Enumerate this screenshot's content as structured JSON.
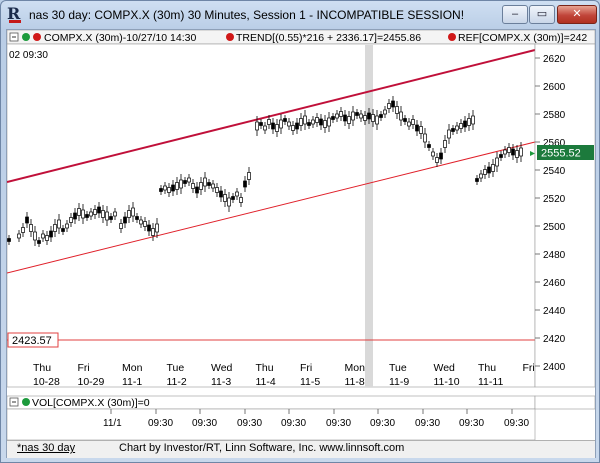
{
  "window": {
    "title": "nas 30 day:  COMPX.X (30m) 30 Minutes, Session 1 - INCOMPATIBLE SESSION!",
    "min_glyph": "–",
    "max_glyph": "▭",
    "close_glyph": "✕"
  },
  "legend": {
    "series_label": "COMPX.X (30m)-10/27/10 14:30",
    "trend_label": "TREND[(0.55)*216 + 2336.17]=2455.86",
    "ref_label": "REF[COMPX.X (30m)]=242",
    "corner_label": "02  09:30"
  },
  "price_scale": {
    "ticks": [
      "2620",
      "2600",
      "2580",
      "2560",
      "2540",
      "2520",
      "2500",
      "2480",
      "2460",
      "2440",
      "2420",
      "2400"
    ],
    "current_price_tag": "2555.52",
    "ref_price_tag": "2423.57"
  },
  "day_axis": {
    "days": [
      {
        "dow": "Thu",
        "date": "10-28"
      },
      {
        "dow": "Fri",
        "date": "10-29"
      },
      {
        "dow": "Mon",
        "date": "11-1"
      },
      {
        "dow": "Tue",
        "date": "11-2"
      },
      {
        "dow": "Wed",
        "date": "11-3"
      },
      {
        "dow": "Thu",
        "date": "11-4"
      },
      {
        "dow": "Fri",
        "date": "11-5"
      },
      {
        "dow": "Mon",
        "date": "11-8"
      },
      {
        "dow": "Tue",
        "date": "11-9"
      },
      {
        "dow": "Wed",
        "date": "11-10"
      },
      {
        "dow": "Thu",
        "date": "11-11"
      },
      {
        "dow": "Fri",
        "date": ""
      }
    ]
  },
  "volume_pane": {
    "label": "VOL[COMPX.X (30m)]=0"
  },
  "time_axis": {
    "labels": [
      "11/1",
      "09:30",
      "09:30",
      "09:30",
      "09:30",
      "09:30",
      "09:30",
      "09:30",
      "09:30",
      "09:30"
    ]
  },
  "status": {
    "chart_name": "*nas 30 day",
    "credit": "Chart by Investor/RT, Linn Software, Inc. www.linnsoft.com"
  },
  "colors": {
    "trend_upper": "#c0103a",
    "trend_lower": "#e0202a",
    "ref_line": "#e04040",
    "candle": "#000000",
    "highlight_band": "#d9d9d9",
    "price_tag_bg": "#1c7a3c",
    "green_dot": "#1c9a3c",
    "red_dot": "#d01818"
  }
}
